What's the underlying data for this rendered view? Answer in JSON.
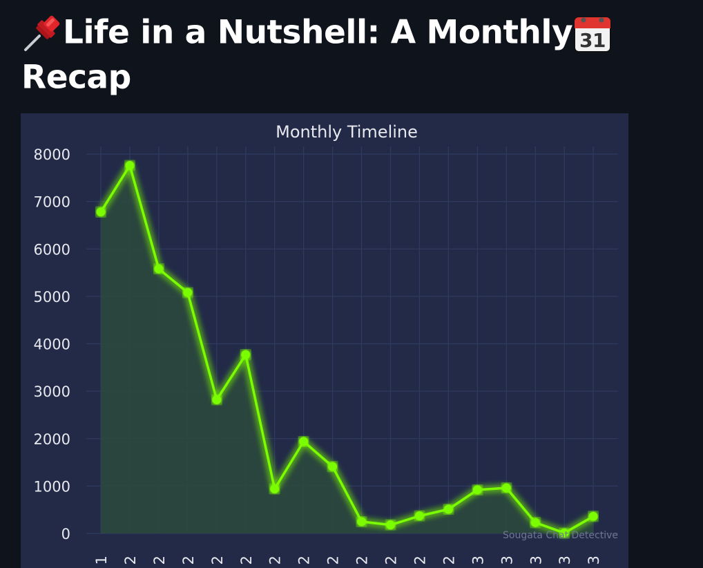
{
  "page": {
    "title_line1": "Life in a Nutshell: A Monthly",
    "title_line2": "Recap",
    "title_icons": [
      "pushpin-icon",
      "calendar-icon"
    ]
  },
  "colors": {
    "background": "#0f131b",
    "panel": "#222a48",
    "grid": "#2f3a5e",
    "line": "#7cfc00",
    "fill": "#2b4a3c",
    "text": "#ffffff"
  },
  "chart_data": {
    "type": "line",
    "title": "Monthly Timeline",
    "xlabel": "",
    "ylabel": "",
    "ylim": [
      0,
      8000
    ],
    "yticks": [
      0,
      1000,
      2000,
      3000,
      4000,
      5000,
      6000,
      7000,
      8000
    ],
    "x_tick_labels_visible": [
      "1",
      "2",
      "2",
      "2",
      "2",
      "2",
      "2",
      "2",
      "2",
      "2",
      "2",
      "2",
      "2",
      "3",
      "3",
      "3",
      "3",
      "3"
    ],
    "values": [
      6780,
      7760,
      5580,
      5080,
      2820,
      3770,
      940,
      1940,
      1410,
      250,
      180,
      370,
      510,
      920,
      960,
      230,
      10,
      360
    ],
    "grid": true,
    "fill_under": true,
    "watermark": "Sougata Chat Detective"
  }
}
